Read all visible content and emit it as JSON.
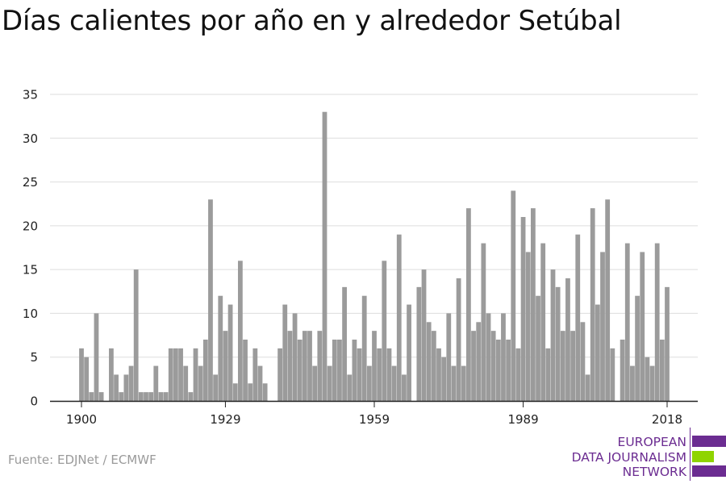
{
  "title": "Días calientes por año en y alrededor Setúbal",
  "source": "Fuente: EDJNet / ECMWF",
  "logo": {
    "line1": "EUROPEAN",
    "line2": "DATA JOURNALISM",
    "line3": "NETWORK",
    "purple": "#6b2c91",
    "green": "#8fd400"
  },
  "colors": {
    "bar": "#9b9b9b",
    "grid": "#dddddd",
    "axis": "#222222",
    "tick_text": "#222222"
  },
  "chart_data": {
    "type": "bar",
    "title": "Días calientes por año en y alrededor Setúbal",
    "xlabel": "",
    "ylabel": "",
    "x_start": 1900,
    "x_end": 2018,
    "xticks": [
      1900,
      1929,
      1959,
      1989,
      2018
    ],
    "yticks": [
      0,
      5,
      10,
      15,
      20,
      25,
      30,
      35
    ],
    "ylim": [
      0,
      35
    ],
    "grid": true,
    "values": [
      6,
      5,
      1,
      10,
      1,
      0,
      6,
      3,
      1,
      3,
      4,
      15,
      1,
      1,
      1,
      4,
      1,
      1,
      6,
      6,
      6,
      4,
      1,
      6,
      4,
      7,
      23,
      3,
      12,
      8,
      11,
      2,
      16,
      7,
      2,
      6,
      4,
      2,
      0,
      0,
      6,
      11,
      8,
      10,
      7,
      8,
      8,
      4,
      8,
      33,
      4,
      7,
      7,
      13,
      3,
      7,
      6,
      12,
      4,
      8,
      6,
      16,
      6,
      4,
      19,
      3,
      11,
      0,
      13,
      15,
      9,
      8,
      6,
      5,
      10,
      4,
      14,
      4,
      22,
      8,
      9,
      18,
      10,
      8,
      7,
      10,
      7,
      24,
      6,
      21,
      17,
      22,
      12,
      18,
      6,
      15,
      13,
      8,
      14,
      8,
      19,
      9,
      3,
      22,
      11,
      17,
      23,
      6,
      0,
      7,
      18,
      4,
      12,
      17,
      5,
      4,
      18,
      7,
      13
    ]
  }
}
